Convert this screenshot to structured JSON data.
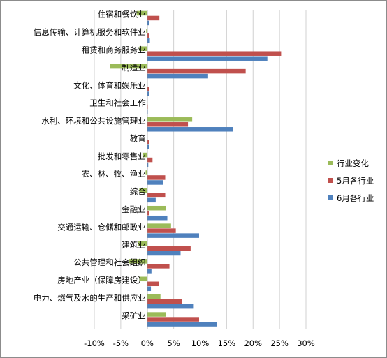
{
  "chart_data": {
    "type": "bar",
    "orientation": "horizontal",
    "categories": [
      "住宿和餐饮业",
      "信息传输、计算机服务和软件业",
      "租赁和商务服务业",
      "制造业",
      "文化、体育和娱乐业",
      "卫生和社会工作",
      "水利、环境和公共设施管理业",
      "教育",
      "批发和零售业",
      "农、林、牧、渔业",
      "综合",
      "金融业",
      "交通运输、仓储和邮政业",
      "建筑业",
      "公共管理和社会组织",
      "房地产业（保障房建设）",
      "电力、燃气及水的生产和供应业",
      "采矿业"
    ],
    "series": [
      {
        "name": "行业变化",
        "color": "#9bbb59",
        "values": [
          -2.0,
          -0.2,
          -1.5,
          -7.0,
          -0.1,
          -0.1,
          8.5,
          -0.1,
          -0.8,
          -0.3,
          -1.5,
          3.5,
          4.5,
          -1.8,
          -3.5,
          -1.5,
          2.5,
          3.5
        ]
      },
      {
        "name": "5月各行业",
        "color": "#c0504d",
        "values": [
          2.3,
          0.3,
          25.3,
          18.6,
          0.4,
          0.1,
          7.7,
          0.3,
          1.0,
          3.4,
          3.4,
          0.4,
          5.4,
          8.2,
          4.2,
          2.2,
          6.6,
          9.8
        ]
      },
      {
        "name": "6月各行业",
        "color": "#4f81bd",
        "values": [
          0.3,
          0.5,
          22.7,
          11.5,
          0.4,
          0.1,
          16.2,
          0.4,
          0.2,
          3.0,
          1.6,
          3.8,
          9.8,
          6.3,
          0.8,
          0.7,
          8.8,
          13.2
        ]
      }
    ],
    "xlim": [
      -10,
      30
    ],
    "xticks": [
      "-10%",
      "-5%",
      "0%",
      "5%",
      "10%",
      "15%",
      "20%",
      "25%",
      "30%"
    ],
    "xtick_values": [
      -10,
      -5,
      0,
      5,
      10,
      15,
      20,
      25,
      30
    ],
    "grid": "vertical",
    "legend_position": "right"
  }
}
